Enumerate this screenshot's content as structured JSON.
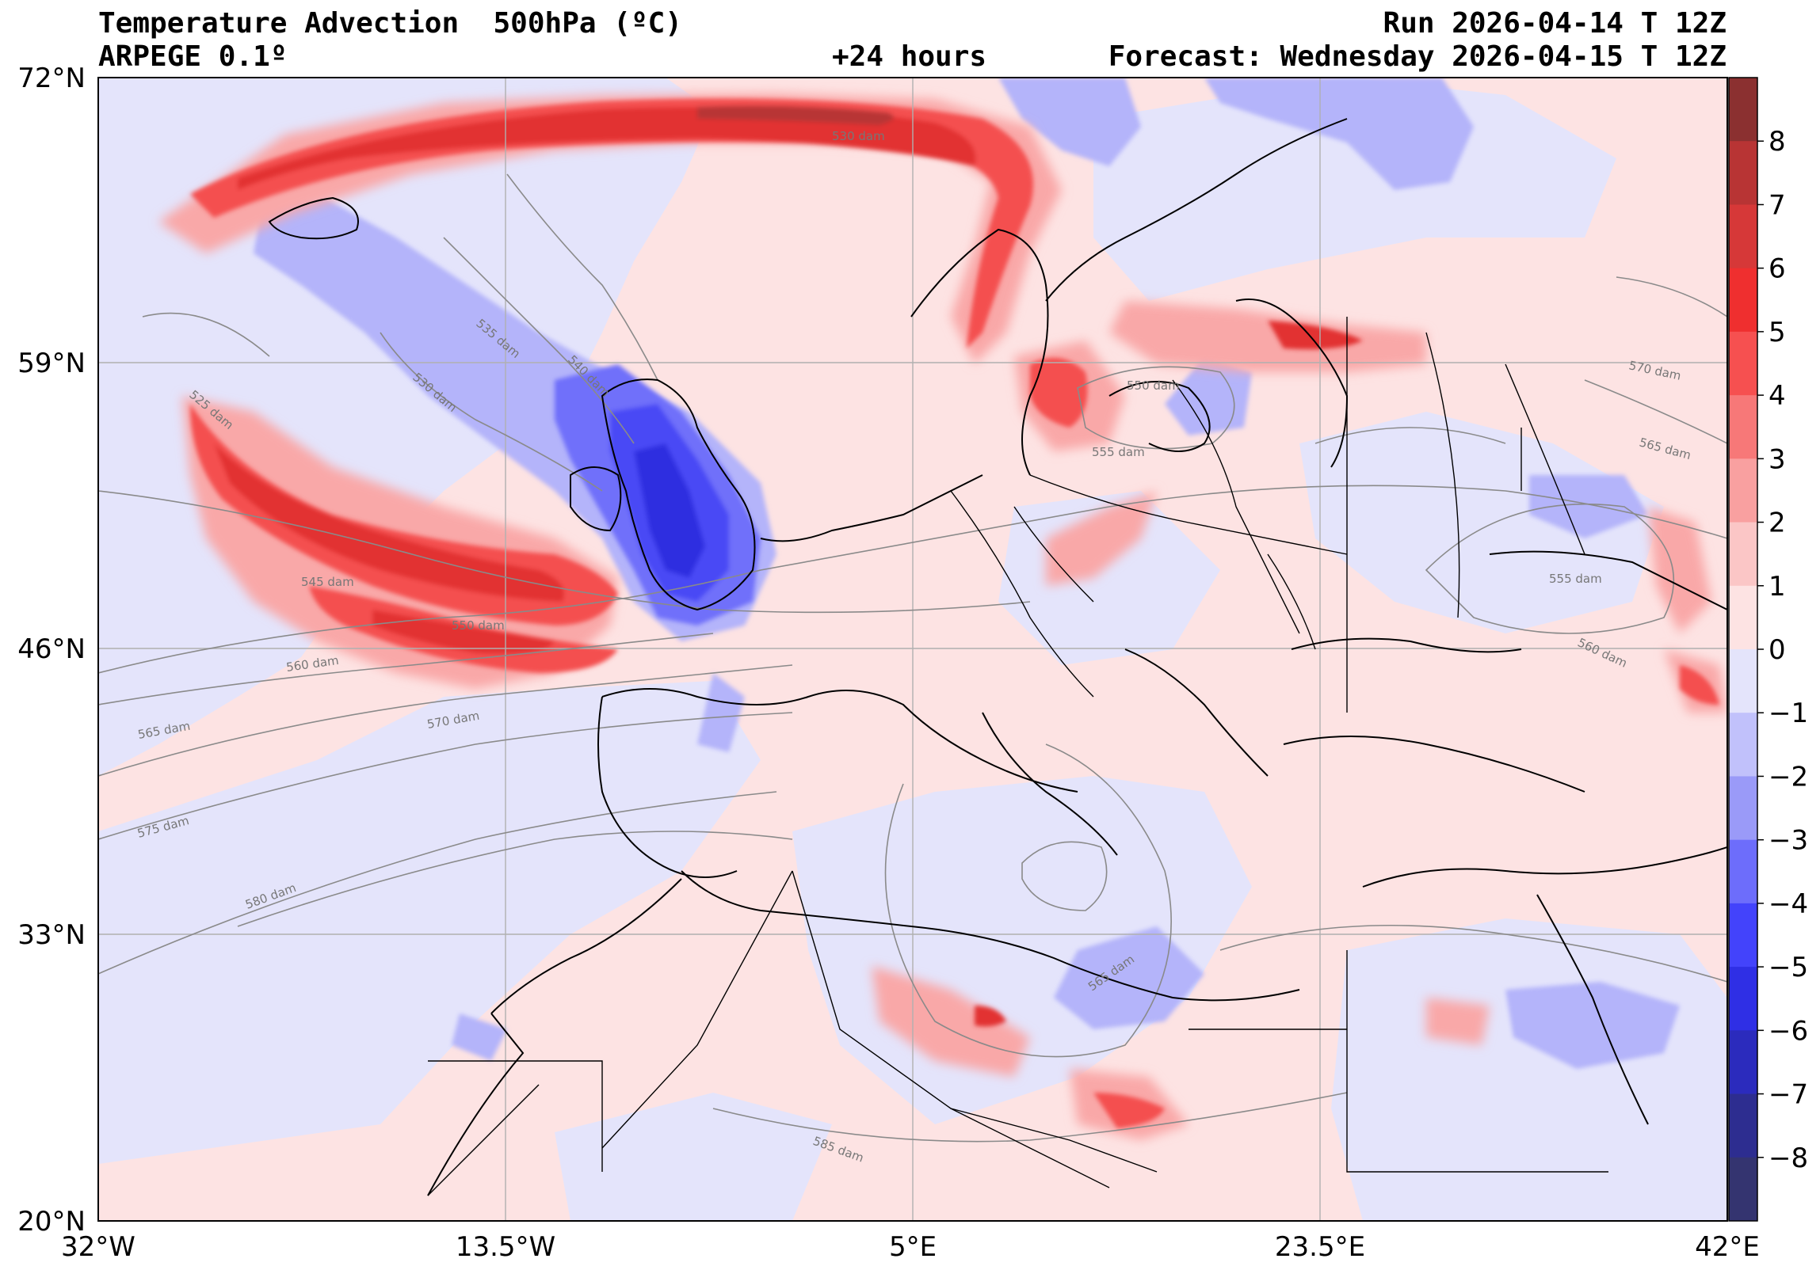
{
  "header": {
    "title": "Temperature Advection  500hPa (ºC)",
    "model": "ARPEGE 0.1º",
    "run": "Run 2026-04-14 T 12Z",
    "lead": "+24 hours",
    "forecast": "Forecast: Wednesday 2026-04-15 T 12Z"
  },
  "axes": {
    "lat_labels": [
      "72°N",
      "59°N",
      "46°N",
      "33°N",
      "20°N"
    ],
    "lon_labels": [
      "32°W",
      "13.5°W",
      "5°E",
      "23.5°E",
      "42°E"
    ]
  },
  "colorbar": {
    "labels": [
      "8",
      "7",
      "6",
      "5",
      "4",
      "3",
      "2",
      "1",
      "0",
      "−1",
      "−2",
      "−3",
      "−4",
      "−5",
      "−6",
      "−7",
      "−8"
    ],
    "colors": [
      "#8b3030",
      "#b83434",
      "#d63838",
      "#ef2f2f",
      "#f65050",
      "#f77878",
      "#f9a0a0",
      "#fbc6c6",
      "#fde3e3",
      "#e4e4fb",
      "#c1c1fb",
      "#9a9af8",
      "#6d6dfb",
      "#4343fb",
      "#2f2fe5",
      "#2b2bbd",
      "#2d2d90",
      "#343470"
    ]
  },
  "contour_labels": [
    "530 dam",
    "535 dam",
    "540 dam",
    "530 dam",
    "525 dam",
    "545 dam",
    "550 dam",
    "560 dam",
    "565 dam",
    "570 dam",
    "575 dam",
    "580 dam",
    "585 dam",
    "550 dam",
    "555 dam",
    "565 dam",
    "570 dam",
    "565 dam",
    "555 dam",
    "560 dam"
  ],
  "colors": {
    "warm_advection": "#ef3b3b",
    "cold_advection": "#3a3af5",
    "background_warm": "#fde3e3",
    "background_cold": "#e4e4fb"
  }
}
